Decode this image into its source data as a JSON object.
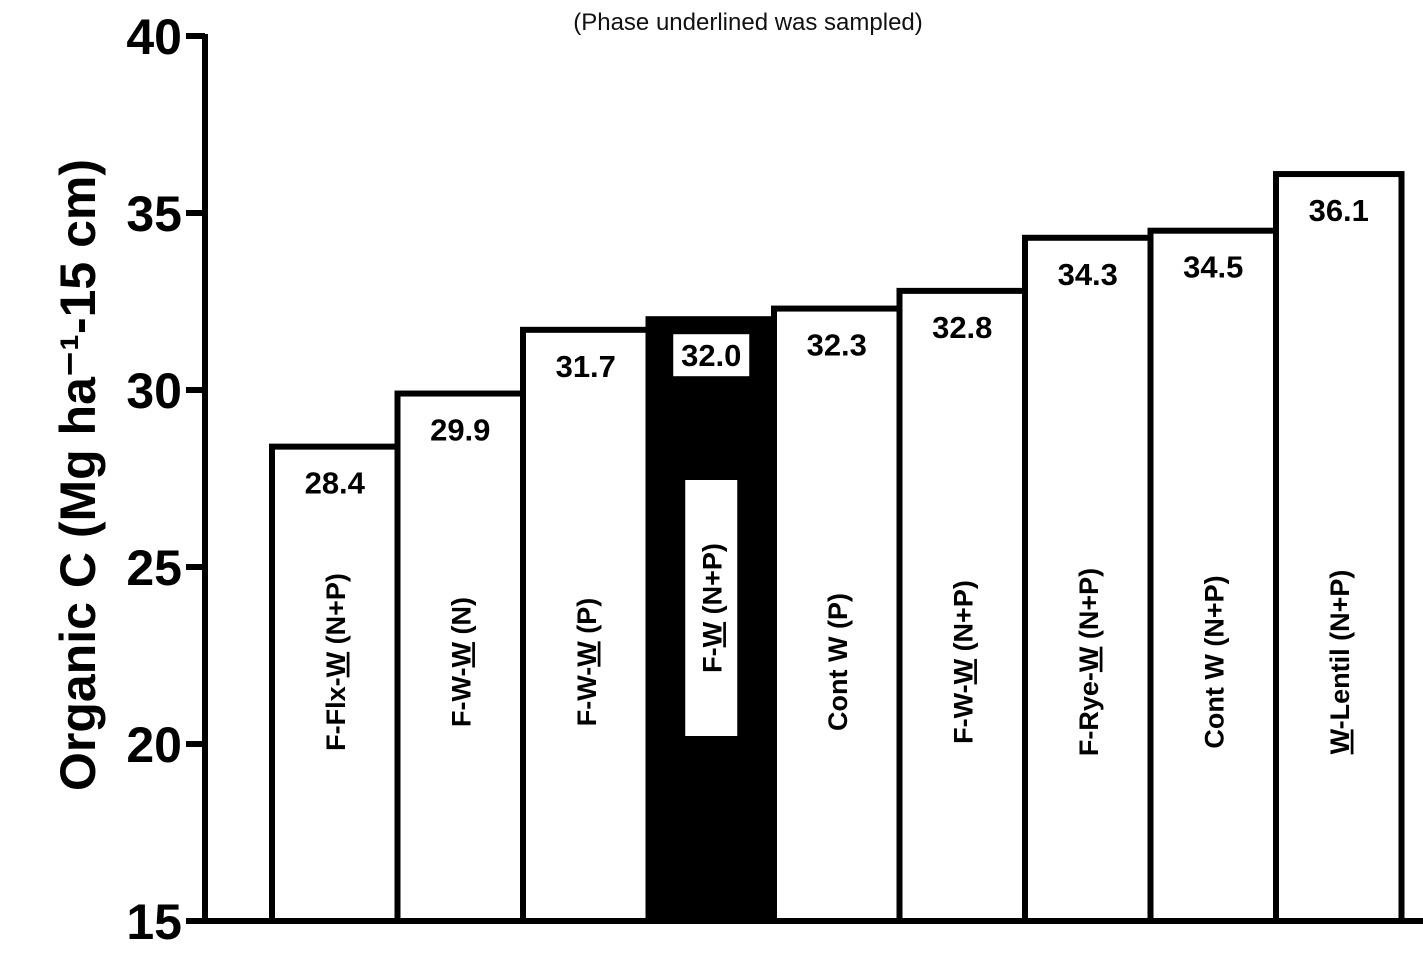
{
  "chart_data": {
    "type": "bar",
    "subtitle": "(Phase underlined was sampled)",
    "ylabel": "Organic C (Mg ha⁻¹-15 cm)",
    "ylim": [
      15,
      40
    ],
    "yticks": [
      "15",
      "20",
      "25",
      "30",
      "35",
      "40"
    ],
    "grid": false,
    "bars": [
      {
        "pre": "F-Flx-",
        "ul": "W",
        "post": " (N+P)",
        "value": 28.4,
        "value_label": "28.4",
        "highlight": false
      },
      {
        "pre": "F-W-",
        "ul": "W",
        "post": " (N)",
        "value": 29.9,
        "value_label": "29.9",
        "highlight": false
      },
      {
        "pre": "F-W-",
        "ul": "W",
        "post": " (P)",
        "value": 31.7,
        "value_label": "31.7",
        "highlight": false
      },
      {
        "pre": "F-",
        "ul": "W",
        "post": " (N+P)",
        "value": 32.0,
        "value_label": "32.0",
        "highlight": true
      },
      {
        "pre": "Cont W (P)",
        "ul": "",
        "post": "",
        "value": 32.3,
        "value_label": "32.3",
        "highlight": false
      },
      {
        "pre": "F-W-",
        "ul": "W",
        "post": " (N+P)",
        "value": 32.8,
        "value_label": "32.8",
        "highlight": false
      },
      {
        "pre": "F-Rye-",
        "ul": "W",
        "post": " (N+P)",
        "value": 34.3,
        "value_label": "34.3",
        "highlight": false
      },
      {
        "pre": "Cont W (N+P)",
        "ul": "",
        "post": "",
        "value": 34.5,
        "value_label": "34.5",
        "highlight": false
      },
      {
        "pre": "",
        "ul": "W",
        "post": "-Lentil (N+P)",
        "value": 36.1,
        "value_label": "36.1",
        "highlight": false
      }
    ],
    "colors": {
      "bar_fill": "#ffffff",
      "highlight_fill": "#000000",
      "stroke": "#000000"
    }
  }
}
